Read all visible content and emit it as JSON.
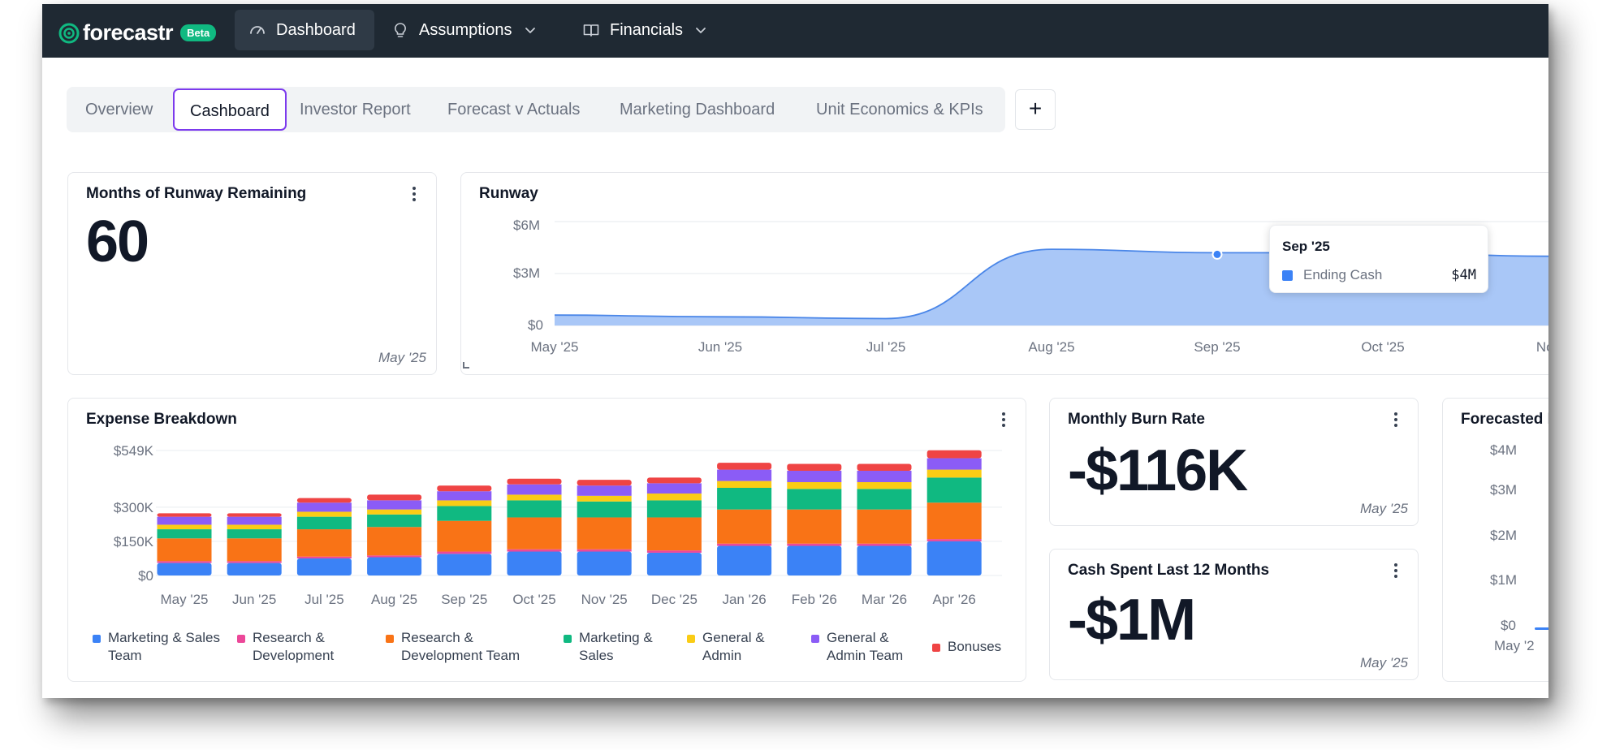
{
  "app": {
    "logo_text": "forecastr",
    "badge": "Beta",
    "nav": [
      {
        "label": "Dashboard",
        "icon": "gauge-icon"
      },
      {
        "label": "Assumptions",
        "icon": "lightbulb-icon"
      },
      {
        "label": "Financials",
        "icon": "book-icon"
      }
    ]
  },
  "tabs": [
    "Overview",
    "Cashboard",
    "Investor Report",
    "Forecast v Actuals",
    "Marketing Dashboard",
    "Unit Economics & KPIs"
  ],
  "active_tab": "Cashboard",
  "add_tab_label": "+",
  "runway_card": {
    "title": "Months of Runway Remaining",
    "value": "60",
    "date": "May '25"
  },
  "runway_chart": {
    "title": "Runway",
    "tooltip": {
      "title": "Sep '25",
      "series": "Ending Cash",
      "value": "$4M"
    }
  },
  "burn_card": {
    "title": "Monthly Burn Rate",
    "value": "-$116K",
    "date": "May '25"
  },
  "spent_card": {
    "title": "Cash Spent Last 12 Months",
    "value": "-$1M",
    "date": "May '25"
  },
  "forecast_card": {
    "title": "Forecasted I"
  },
  "expense_card": {
    "title": "Expense Breakdown"
  },
  "colors": {
    "nav_bg": "#1f2933",
    "accent_purple": "#7c3aed",
    "runway_fill": "#a9c7f7",
    "runway_line": "#4a86e8",
    "mkt_team": "#3b82f6",
    "rnd": "#ec4899",
    "rnd_team": "#f97316",
    "mkt": "#10b981",
    "ga": "#facc15",
    "ga_team": "#8b5cf6",
    "bonus": "#ef4444"
  },
  "chart_data": [
    {
      "type": "area",
      "title": "Runway",
      "series_name": "Ending Cash",
      "x": [
        "May '25",
        "Jun '25",
        "Jul '25",
        "Aug '25",
        "Sep '25",
        "Oct '25",
        "Nov"
      ],
      "values": [
        0.6,
        0.5,
        0.4,
        4.4,
        4.2,
        4.2,
        4.0
      ],
      "unit": "$M",
      "y_ticks": [
        "$0",
        "$3M",
        "$6M"
      ],
      "ylim": [
        0,
        6
      ]
    },
    {
      "type": "bar",
      "stacked": true,
      "title": "Expense Breakdown",
      "categories": [
        "May '25",
        "Jun '25",
        "Jul '25",
        "Aug '25",
        "Sep '25",
        "Oct '25",
        "Nov '25",
        "Dec '25",
        "Jan '26",
        "Feb '26",
        "Mar '26",
        "Apr '26"
      ],
      "y_ticks": [
        {
          "label": "$0",
          "value": 0
        },
        {
          "label": "$150K",
          "value": 150
        },
        {
          "label": "$300K",
          "value": 300
        },
        {
          "label": "$549K",
          "value": 549
        }
      ],
      "ylim": [
        0,
        549
      ],
      "unit": "$K",
      "series": [
        {
          "name": "Marketing & Sales Team",
          "color_key": "mkt_team",
          "values": [
            55,
            55,
            75,
            80,
            95,
            105,
            105,
            100,
            130,
            130,
            130,
            150
          ]
        },
        {
          "name": "Research & Development",
          "color_key": "rnd",
          "values": [
            8,
            8,
            8,
            8,
            10,
            10,
            10,
            10,
            10,
            10,
            10,
            10
          ]
        },
        {
          "name": "Research & Development Team",
          "color_key": "rnd_team",
          "values": [
            100,
            100,
            120,
            125,
            135,
            140,
            140,
            145,
            150,
            150,
            150,
            160
          ]
        },
        {
          "name": "Marketing & Sales",
          "color_key": "mkt",
          "values": [
            40,
            40,
            55,
            55,
            65,
            75,
            70,
            75,
            95,
            90,
            90,
            110
          ]
        },
        {
          "name": "General & Admin",
          "color_key": "ga",
          "values": [
            20,
            20,
            22,
            22,
            25,
            25,
            25,
            30,
            30,
            30,
            30,
            35
          ]
        },
        {
          "name": "General & Admin Team",
          "color_key": "ga_team",
          "values": [
            35,
            35,
            40,
            40,
            40,
            45,
            45,
            45,
            50,
            50,
            50,
            50
          ]
        },
        {
          "name": "Bonuses",
          "color_key": "bonus",
          "values": [
            15,
            15,
            20,
            25,
            25,
            25,
            25,
            25,
            30,
            30,
            30,
            35
          ]
        }
      ]
    },
    {
      "type": "line",
      "title": "Forecasted I",
      "x": [
        "May '2"
      ],
      "y_ticks": [
        "$0",
        "$1M",
        "$2M",
        "$3M",
        "$4M"
      ],
      "ylim": [
        0,
        4
      ],
      "unit": "$M"
    }
  ]
}
